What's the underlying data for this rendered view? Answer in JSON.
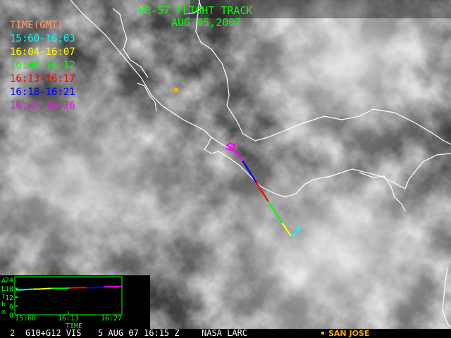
{
  "header": {
    "title": "WB-57 FLIGHT TRACK",
    "date": "AUG 05,2007"
  },
  "legend": {
    "heading": "TIME(GMT)",
    "heading_color": "#ff9966",
    "items": [
      {
        "label": "15:60-16:03",
        "color": "#00ffff"
      },
      {
        "label": "16:04-16:07",
        "color": "#ffff00"
      },
      {
        "label": "16:08-16:12",
        "color": "#00ff00"
      },
      {
        "label": "16:13-16:17",
        "color": "#ff0000"
      },
      {
        "label": "16:18-16:21",
        "color": "#0000ff"
      },
      {
        "label": "16:22-16:26",
        "color": "#ff00ff"
      }
    ]
  },
  "marker": {
    "label": "SAN JOSE",
    "color": "#ffaa00",
    "icon": "square-marker-icon"
  },
  "altitude_chart": {
    "type": "line",
    "ylabel_letters": [
      "A",
      "L",
      "T",
      "k",
      "m"
    ],
    "yticks": [
      "24",
      "18",
      "12",
      "6",
      "0"
    ],
    "ylim": [
      0,
      24
    ],
    "xticks": [
      "15:60",
      "16:13",
      "16:27"
    ],
    "xlabel": "TIME",
    "segments": [
      {
        "color": "#00ffff",
        "values": [
          17.0,
          17.0,
          17.3,
          17.5
        ]
      },
      {
        "color": "#ffff00",
        "values": [
          17.5,
          17.5,
          17.8,
          18.0
        ]
      },
      {
        "color": "#00ff00",
        "values": [
          18.0,
          18.0,
          18.0,
          18.2
        ]
      },
      {
        "color": "#ff0000",
        "values": [
          18.2,
          18.5,
          18.5,
          18.5
        ]
      },
      {
        "color": "#0000ff",
        "values": [
          18.5,
          18.5,
          18.6,
          19.0
        ]
      },
      {
        "color": "#ff00ff",
        "values": [
          19.0,
          19.0,
          19.2,
          19.2
        ]
      }
    ]
  },
  "footer": {
    "frame": "2",
    "sensor": "G10+G12 VIS",
    "timestamp": "5 AUG 07 16:15 Z",
    "credit": "NASA LARC"
  }
}
